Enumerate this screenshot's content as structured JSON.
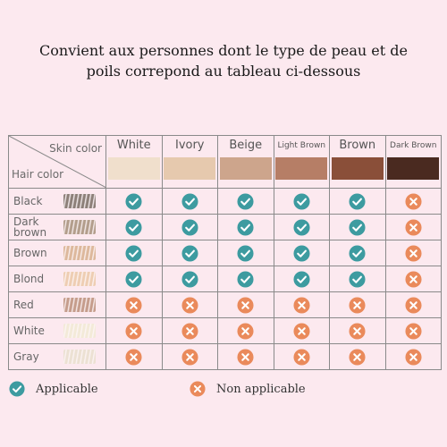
{
  "headline": "Convient aux personnes dont le type de peau et de poils correpond au tableau ci-dessous",
  "table": {
    "corner": {
      "skin_label": "Skin color",
      "hair_label": "Hair color"
    },
    "skin_tones": [
      {
        "name": "White",
        "color": "#f0dfcc"
      },
      {
        "name": "Ivory",
        "color": "#e6c9ae"
      },
      {
        "name": "Beige",
        "color": "#cda58c"
      },
      {
        "name": "Light Brown",
        "color": "#b67e66"
      },
      {
        "name": "Brown",
        "color": "#8a4f39"
      },
      {
        "name": "Dark Brown",
        "color": "#4a2a20"
      }
    ],
    "hair_types": [
      {
        "name": "Black",
        "color": "#8c7f78",
        "status": [
          "applicable",
          "applicable",
          "applicable",
          "applicable",
          "applicable",
          "not_applicable"
        ]
      },
      {
        "name": "Dark brown",
        "color": "#b29d8b",
        "status": [
          "applicable",
          "applicable",
          "applicable",
          "applicable",
          "applicable",
          "not_applicable"
        ]
      },
      {
        "name": "Brown",
        "color": "#ddb89c",
        "status": [
          "applicable",
          "applicable",
          "applicable",
          "applicable",
          "applicable",
          "not_applicable"
        ]
      },
      {
        "name": "Blond",
        "color": "#eecdb2",
        "status": [
          "applicable",
          "applicable",
          "applicable",
          "applicable",
          "applicable",
          "not_applicable"
        ]
      },
      {
        "name": "Red",
        "color": "#c59c8b",
        "status": [
          "not_applicable",
          "not_applicable",
          "not_applicable",
          "not_applicable",
          "not_applicable",
          "not_applicable"
        ]
      },
      {
        "name": "White",
        "color": "#f3ead8",
        "status": [
          "not_applicable",
          "not_applicable",
          "not_applicable",
          "not_applicable",
          "not_applicable",
          "not_applicable"
        ]
      },
      {
        "name": "Gray",
        "color": "#ece1d3",
        "status": [
          "not_applicable",
          "not_applicable",
          "not_applicable",
          "not_applicable",
          "not_applicable",
          "not_applicable"
        ]
      }
    ]
  },
  "legend": {
    "applicable": {
      "label": "Applicable",
      "icon": "check-circle-icon",
      "color": "#3d9ba0"
    },
    "not_applicable": {
      "label": "Non applicable",
      "icon": "x-circle-icon",
      "color": "#ea8a5b"
    }
  }
}
